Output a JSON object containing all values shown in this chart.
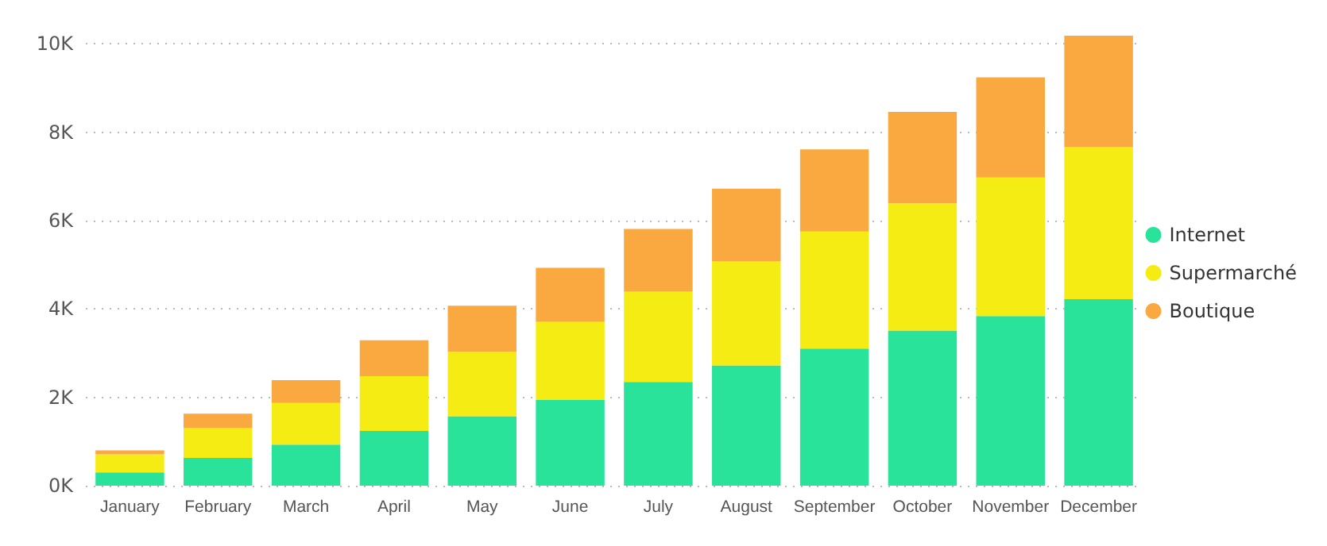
{
  "chart_data": {
    "type": "bar",
    "stacked": true,
    "categories": [
      "January",
      "February",
      "March",
      "April",
      "May",
      "June",
      "July",
      "August",
      "September",
      "October",
      "November",
      "December"
    ],
    "series": [
      {
        "name": "Internet",
        "color": "#2ae39b",
        "values": [
          300,
          630,
          930,
          1240,
          1570,
          1940,
          2350,
          2720,
          3100,
          3510,
          3840,
          4220
        ]
      },
      {
        "name": "Supermarché",
        "color": "#f5ec13",
        "values": [
          410,
          670,
          940,
          1240,
          1460,
          1770,
          2040,
          2360,
          2650,
          2880,
          3130,
          3450
        ]
      },
      {
        "name": "Boutique",
        "color": "#f9a93f",
        "values": [
          90,
          330,
          520,
          810,
          1040,
          1220,
          1420,
          1640,
          1860,
          2070,
          2270,
          2510
        ]
      }
    ],
    "ylim": [
      0,
      10200
    ],
    "yticks": [
      {
        "value": 0,
        "label": "0K"
      },
      {
        "value": 2000,
        "label": "2K"
      },
      {
        "value": 4000,
        "label": "4K"
      },
      {
        "value": 6000,
        "label": "6K"
      },
      {
        "value": 8000,
        "label": "8K"
      },
      {
        "value": 10000,
        "label": "10K"
      }
    ],
    "grid": "y",
    "legend": "right"
  }
}
